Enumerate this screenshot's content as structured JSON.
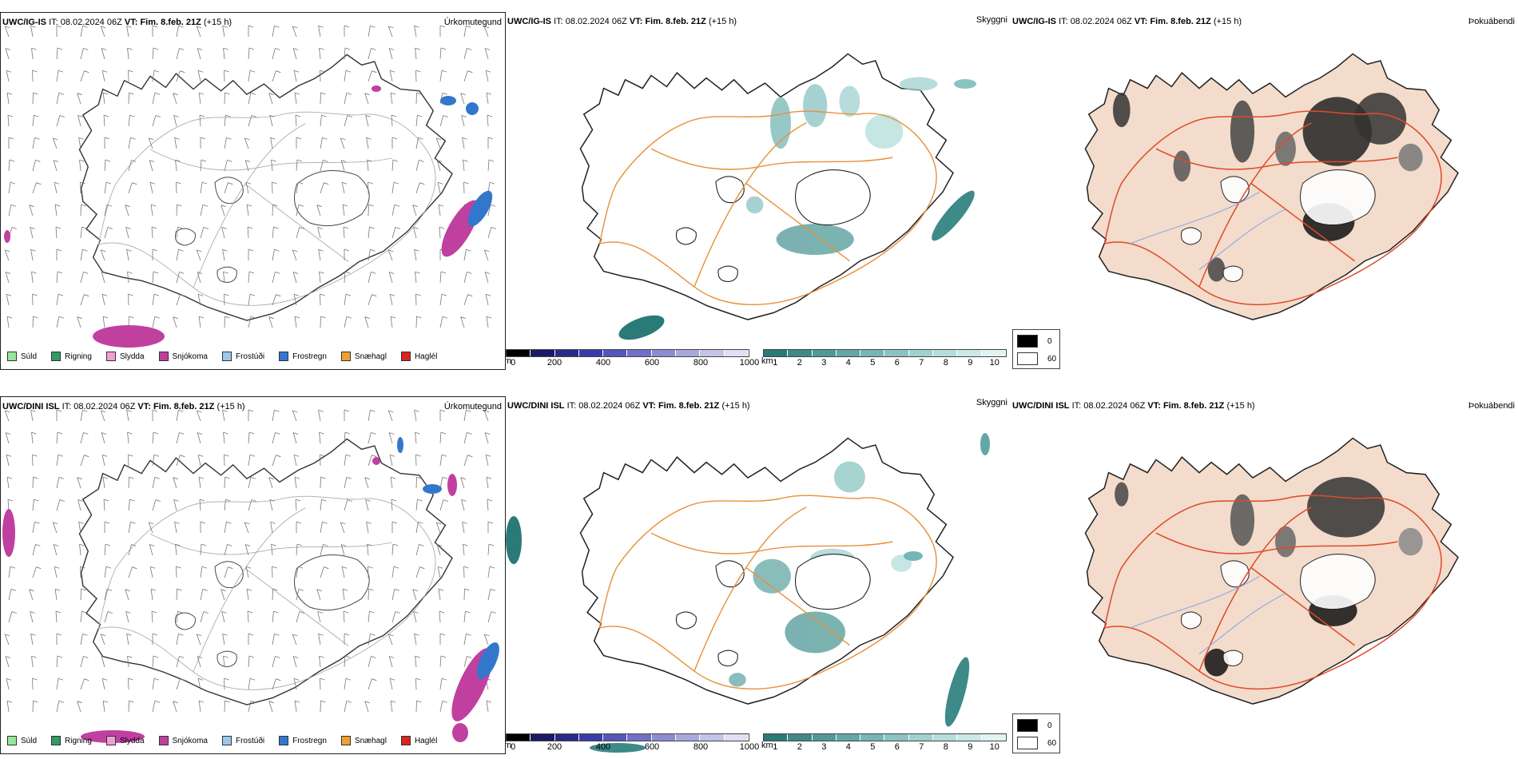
{
  "rows": [
    {
      "model": "UWC/IG-IS",
      "it": "08.02.2024 06Z",
      "vt": "Fim. 8.feb. 21Z",
      "lead": "(+15 h)"
    },
    {
      "model": "UWC/DINI ISL",
      "it": "08.02.2024 06Z",
      "vt": "Fim. 8.feb. 21Z",
      "lead": "(+15 h)"
    }
  ],
  "labels": {
    "it_label": "IT:",
    "vt_label": "VT:",
    "precip_param": "Úrkomutegund",
    "cloud_param": "Skyggni",
    "fog_param": "Þokuábendi"
  },
  "precip_legend": [
    {
      "label": "Súld",
      "color": "#99e699"
    },
    {
      "label": "Rigning",
      "color": "#339966"
    },
    {
      "label": "Slydda",
      "color": "#f0a0d0"
    },
    {
      "label": "Snjókoma",
      "color": "#c040a0"
    },
    {
      "label": "Frostúði",
      "color": "#99c8f0"
    },
    {
      "label": "Frostregn",
      "color": "#3377cc"
    },
    {
      "label": "Snæhagl",
      "color": "#f0a030"
    },
    {
      "label": "Haglél",
      "color": "#dd2222"
    }
  ],
  "ceiling_bar": {
    "unit": "m",
    "ticks": [
      "0",
      "200",
      "400",
      "600",
      "800",
      "1000"
    ],
    "colors": [
      "#000000",
      "#1a1a66",
      "#2a2a8a",
      "#3b3ba8",
      "#5555bb",
      "#7070c8",
      "#8c8cd2",
      "#a8a8dc",
      "#c4c4e8",
      "#e0e0f4"
    ]
  },
  "visibility_bar": {
    "unit": "km",
    "ticks": [
      "1",
      "2",
      "3",
      "4",
      "5",
      "6",
      "7",
      "8",
      "9",
      "10"
    ],
    "colors": [
      "#2a7a78",
      "#3d8a88",
      "#4f9997",
      "#62a8a6",
      "#76b6b4",
      "#8ac4c2",
      "#9fd1cf",
      "#b4dedc",
      "#cae9e8",
      "#e0f3f2"
    ]
  },
  "fog_legend": [
    {
      "label": "0",
      "color": "#000000"
    },
    {
      "label": "60",
      "color": "#ffffff"
    }
  ]
}
